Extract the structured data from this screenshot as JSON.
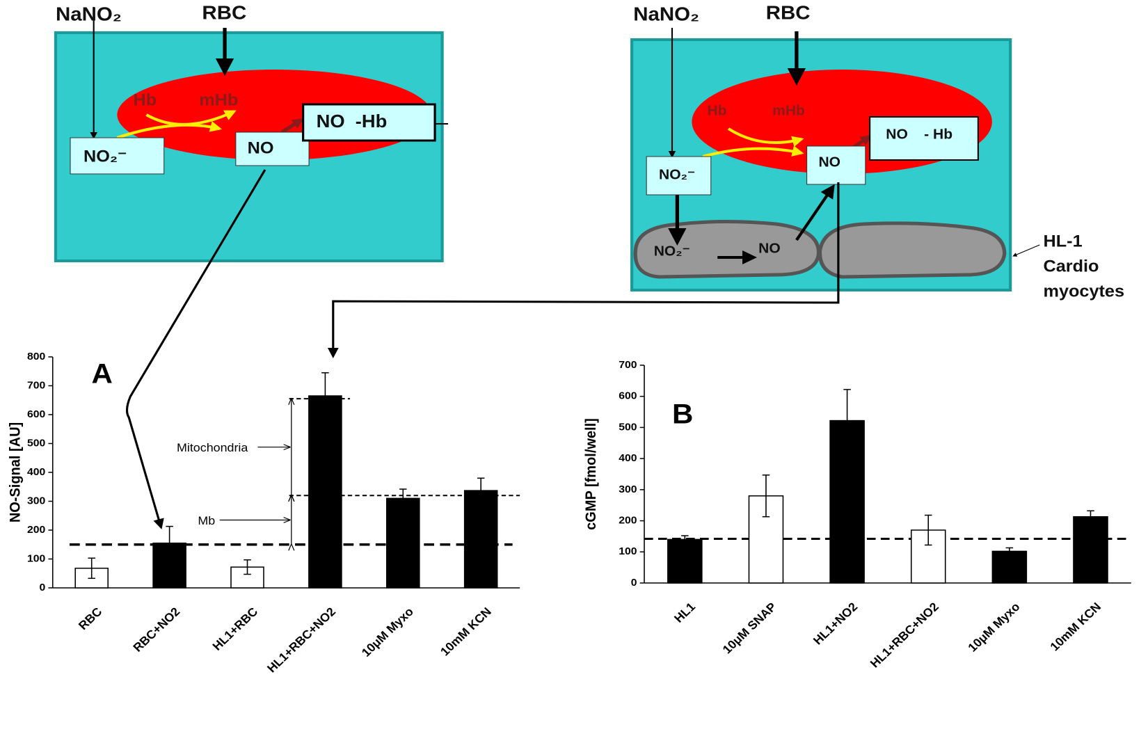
{
  "chart_data": [
    {
      "type": "bar",
      "label": "A",
      "y_label": "NO-Signal [AU]",
      "categories": [
        "RBC",
        "RBC+NO2",
        "HL1+RBC",
        "HL1+RBC+NO2",
        "10μM Myxo",
        "10mM KCN"
      ],
      "values": [
        68,
        155,
        72,
        665,
        310,
        337
      ],
      "errors": [
        35,
        58,
        25,
        80,
        32,
        43
      ],
      "colors": [
        "#ffffff",
        "#000000",
        "#ffffff",
        "#000000",
        "#000000",
        "#000000"
      ],
      "ylim": [
        0,
        800
      ],
      "yticks": [
        0,
        100,
        200,
        300,
        400,
        500,
        600,
        700,
        800
      ],
      "reference_lines": [
        150,
        320,
        655
      ],
      "annotations": [
        "Mitochondria",
        "Mb"
      ]
    },
    {
      "type": "bar",
      "label": "B",
      "y_label": "cGMP [fmol/well]",
      "categories": [
        "HL1",
        "10μM SNAP",
        "HL1+NO2",
        "HL1+RBC+NO2",
        "10μM Myxo",
        "10mM KCN"
      ],
      "values": [
        140,
        280,
        522,
        170,
        102,
        213
      ],
      "errors": [
        12,
        67,
        100,
        48,
        11,
        19
      ],
      "colors": [
        "#000000",
        "#ffffff",
        "#000000",
        "#ffffff",
        "#000000",
        "#000000"
      ],
      "ylim": [
        0,
        700
      ],
      "yticks": [
        0,
        100,
        200,
        300,
        400,
        500,
        600,
        700
      ],
      "reference_lines": [
        142
      ]
    }
  ],
  "diagrams": {
    "left": {
      "nitrite_input": "NaNO₂",
      "rbc_input": "RBC",
      "hb": "Hb",
      "mhb": "mHb",
      "nitrite": "NO₂⁻",
      "no": "NO",
      "no_hb": "NO  -Hb"
    },
    "right": {
      "nitrite_input": "NaNO₂",
      "rbc_input": "RBC",
      "hb": "Hb",
      "mhb": "mHb",
      "nitrite": "NO₂⁻",
      "no": "NO",
      "no_hb": "NO    - Hb",
      "cell_nitrite": "NO₂⁻",
      "cell_no": "NO",
      "cell_label": [
        "HL-1",
        "Cardio",
        "myocytes"
      ]
    }
  }
}
